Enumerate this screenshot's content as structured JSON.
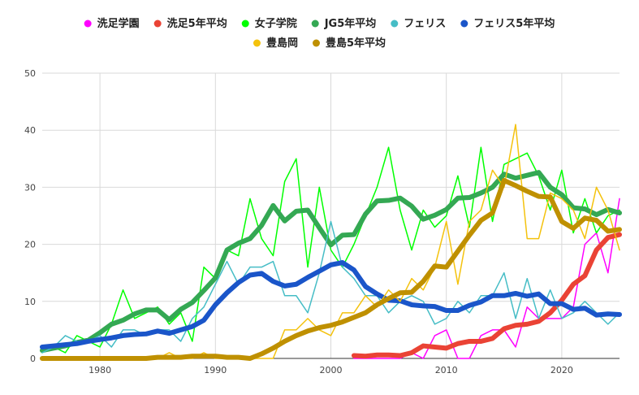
{
  "chart_data": {
    "type": "line",
    "title": "",
    "xlabel": "",
    "ylabel": "",
    "xlim": [
      1975,
      2025
    ],
    "ylim": [
      0,
      50
    ],
    "x_ticks": [
      "1980",
      "1990",
      "2000",
      "2010",
      "2020"
    ],
    "y_ticks": [
      "0",
      "10",
      "20",
      "30",
      "40",
      "50"
    ],
    "grid": "vertical and horizontal",
    "legend_position": "top",
    "x": [
      1975,
      1976,
      1977,
      1978,
      1979,
      1980,
      1981,
      1982,
      1983,
      1984,
      1985,
      1986,
      1987,
      1988,
      1989,
      1990,
      1991,
      1992,
      1993,
      1994,
      1995,
      1996,
      1997,
      1998,
      1999,
      2000,
      2001,
      2002,
      2003,
      2004,
      2005,
      2006,
      2007,
      2008,
      2009,
      2010,
      2011,
      2012,
      2013,
      2014,
      2015,
      2016,
      2017,
      2018,
      2019,
      2020,
      2021,
      2022,
      2023,
      2024,
      2025
    ],
    "series": [
      {
        "name": "洗足学園",
        "color": "#ff00ff",
        "width": 1.5,
        "values": [
          null,
          null,
          null,
          null,
          null,
          null,
          null,
          null,
          null,
          null,
          null,
          null,
          null,
          null,
          null,
          null,
          null,
          null,
          null,
          null,
          null,
          null,
          null,
          null,
          null,
          null,
          null,
          0,
          0,
          0,
          0,
          0,
          1,
          0,
          4,
          5,
          0,
          0,
          4,
          5,
          5,
          2,
          9,
          7,
          7,
          7,
          9,
          20,
          22,
          15,
          28
        ]
      },
      {
        "name": "洗足5年平均",
        "color": "#ea4335",
        "width": 6,
        "values": [
          null,
          null,
          null,
          null,
          null,
          null,
          null,
          null,
          null,
          null,
          null,
          null,
          null,
          null,
          null,
          null,
          null,
          null,
          null,
          null,
          null,
          null,
          null,
          null,
          null,
          null,
          null,
          0.5,
          0.4,
          0.6,
          0.6,
          0.5,
          1.0,
          2.2,
          2.0,
          1.8,
          2.6,
          3.0,
          3.0,
          3.5,
          5.2,
          5.8,
          6.0,
          6.5,
          8.0,
          10.2,
          13.0,
          14.5,
          19.0,
          21.2,
          21.7
        ]
      },
      {
        "name": "女子学院",
        "color": "#00ff00",
        "width": 1.5,
        "values": [
          1,
          2,
          1,
          4,
          3,
          2,
          6,
          12,
          7,
          8,
          9,
          6,
          8,
          3,
          16,
          14,
          19,
          18,
          28,
          21,
          18,
          31,
          35,
          16,
          30,
          19,
          16,
          20,
          25,
          30,
          37,
          26,
          19,
          26,
          23,
          25,
          32,
          23,
          37,
          24,
          34,
          35,
          36,
          32,
          26,
          33,
          22,
          28,
          22,
          25,
          26
        ]
      },
      {
        "name": "JG5年平均",
        "color": "#34a853",
        "width": 6,
        "values": [
          1.4,
          1.8,
          2.2,
          2.8,
          3.2,
          4.5,
          6.0,
          6.7,
          7.8,
          8.5,
          8.5,
          6.8,
          8.6,
          9.8,
          11.9,
          14.1,
          19.0,
          20.2,
          21.0,
          23.3,
          26.8,
          24.1,
          25.8,
          26.0,
          22.9,
          19.9,
          21.6,
          21.7,
          25.3,
          27.6,
          27.7,
          28.1,
          26.7,
          24.4,
          25.1,
          26.1,
          28.1,
          28.2,
          29.0,
          30.0,
          32.3,
          31.6,
          32.1,
          32.6,
          30.0,
          28.7,
          26.4,
          26.2,
          25.2,
          26.1,
          25.5
        ]
      },
      {
        "name": "フェリス",
        "color": "#46bdc6",
        "width": 1.5,
        "values": [
          1,
          2,
          4,
          3,
          3,
          4,
          2,
          5,
          5,
          4,
          5,
          5,
          3,
          7,
          9,
          13,
          17,
          13,
          16,
          16,
          17,
          11,
          11,
          8,
          15,
          24,
          16,
          14,
          11,
          11,
          8,
          10,
          11,
          10,
          6,
          7,
          10,
          8,
          11,
          11,
          15,
          7,
          14,
          7,
          12,
          7,
          8,
          10,
          8,
          6,
          8
        ]
      },
      {
        "name": "フェリス5年平均",
        "color": "#1a55c9",
        "width": 6,
        "values": [
          2.0,
          2.2,
          2.4,
          2.6,
          3.0,
          3.3,
          3.6,
          4.0,
          4.2,
          4.3,
          4.8,
          4.4,
          5.0,
          5.6,
          6.7,
          9.4,
          11.5,
          13.3,
          14.6,
          14.9,
          13.5,
          12.7,
          13.0,
          14.2,
          15.3,
          16.4,
          16.8,
          15.5,
          12.6,
          11.3,
          10.2,
          10.1,
          9.4,
          9.2,
          9.1,
          8.4,
          8.4,
          9.3,
          9.9,
          11.0,
          11.0,
          11.4,
          10.9,
          11.3,
          9.6,
          9.6,
          8.6,
          8.8,
          7.6,
          7.8,
          7.7
        ]
      },
      {
        "name": "豊島岡",
        "color": "#f4c20d",
        "width": 1.5,
        "values": [
          0,
          0,
          0,
          0,
          0,
          0,
          0,
          0,
          0,
          0,
          0,
          1,
          0,
          0,
          1,
          0,
          0,
          0,
          0,
          0,
          0,
          5,
          5,
          7,
          5,
          4,
          8,
          8,
          11,
          9,
          12,
          10,
          14,
          12,
          16,
          24,
          13,
          24,
          26,
          33,
          30,
          41,
          21,
          21,
          29,
          28,
          26,
          21,
          30,
          26,
          19
        ]
      },
      {
        "name": "豊島5年平均",
        "color": "#bf9000",
        "width": 6,
        "values": [
          0,
          0,
          0,
          0,
          0,
          0,
          0,
          0,
          0,
          0,
          0.2,
          0.2,
          0.2,
          0.4,
          0.4,
          0.4,
          0.2,
          0.2,
          0,
          0.8,
          1.8,
          3.0,
          4.0,
          4.8,
          5.4,
          5.8,
          6.4,
          7.2,
          8.0,
          9.4,
          10.5,
          11.5,
          11.6,
          13.5,
          16.2,
          16.0,
          18.8,
          21.6,
          24.2,
          25.5,
          31.2,
          30.3,
          29.3,
          28.4,
          28.3,
          24.0,
          22.8,
          24.6,
          24.2,
          22.3,
          22.6
        ]
      }
    ]
  }
}
